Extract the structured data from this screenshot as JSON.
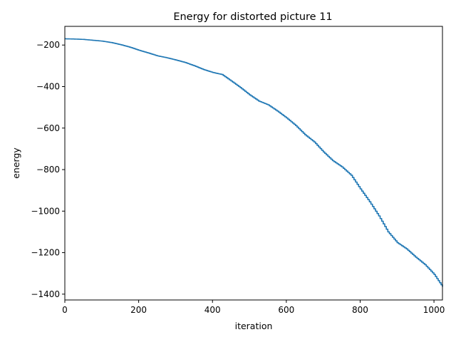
{
  "chart_data": {
    "type": "line",
    "title": "Energy for distorted picture 11",
    "xlabel": "iteration",
    "ylabel": "energy",
    "xlim": [
      0,
      1023
    ],
    "ylim": [
      -1428,
      -110
    ],
    "xticks": [
      0,
      200,
      400,
      600,
      800,
      1000
    ],
    "yticks": [
      -1400,
      -1200,
      -1000,
      -800,
      -600,
      -400,
      -200
    ],
    "grid": false,
    "legend": "none",
    "series": [
      {
        "color": "#1f77b4",
        "x": [
          0,
          25,
          50,
          75,
          100,
          125,
          150,
          175,
          200,
          225,
          250,
          275,
          300,
          325,
          350,
          375,
          400,
          425,
          450,
          475,
          500,
          525,
          550,
          575,
          600,
          625,
          650,
          675,
          700,
          725,
          750,
          775,
          800,
          825,
          850,
          875,
          900,
          925,
          950,
          975,
          1000,
          1023
        ],
        "y": [
          -170,
          -171,
          -173,
          -177,
          -181,
          -188,
          -198,
          -210,
          -225,
          -238,
          -252,
          -261,
          -272,
          -284,
          -300,
          -318,
          -332,
          -342,
          -373,
          -405,
          -440,
          -470,
          -488,
          -518,
          -551,
          -588,
          -632,
          -667,
          -715,
          -757,
          -787,
          -827,
          -893,
          -955,
          -1023,
          -1100,
          -1152,
          -1182,
          -1222,
          -1258,
          -1305,
          -1365
        ]
      }
    ]
  }
}
